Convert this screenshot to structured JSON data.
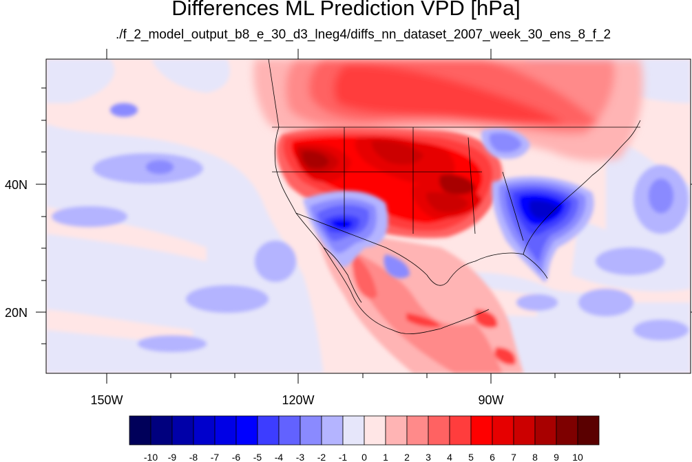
{
  "title": "Differences ML Prediction VPD [hPa]",
  "subtitle": "./f_2_model_output_b8_e_30_d3_lneg4/diffs_nn_dataset_2007_week_30_ens_8_f_2",
  "map": {
    "lon_ticks": [
      "150W",
      "120W",
      "90W"
    ],
    "lat_ticks": [
      "40N",
      "20N"
    ]
  },
  "colorbar": {
    "labels": [
      "-10",
      "-9",
      "-8",
      "-7",
      "-6",
      "-5",
      "-4",
      "-3",
      "-2",
      "-1",
      "0",
      "1",
      "2",
      "3",
      "4",
      "5",
      "6",
      "7",
      "8",
      "9",
      "10"
    ],
    "colors": [
      "#00005a",
      "#00007e",
      "#0000a8",
      "#0000cc",
      "#0000e6",
      "#0000ff",
      "#3d3dff",
      "#6262ff",
      "#8a8aff",
      "#b4b4ff",
      "#e6e6fa",
      "#ffe6e6",
      "#ffb4b4",
      "#ff8a8a",
      "#ff6262",
      "#ff3d3d",
      "#ff0000",
      "#e60000",
      "#cc0000",
      "#a80000",
      "#7e0000",
      "#5a0000"
    ]
  },
  "colors": {
    "neutral_field": "#ffe6e6",
    "land_outline": "#000000"
  }
}
